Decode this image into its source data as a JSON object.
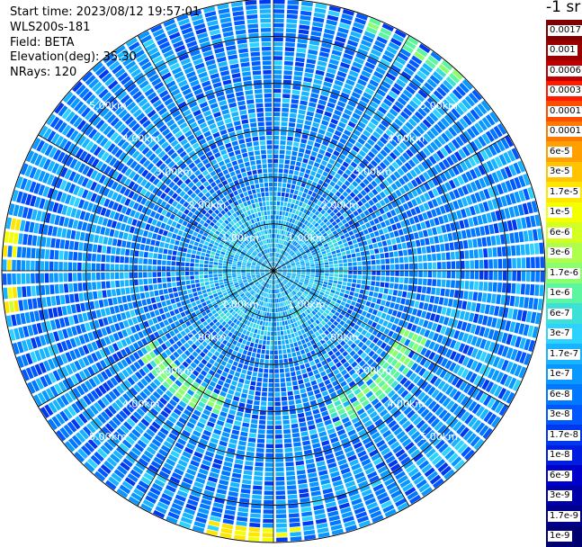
{
  "info": {
    "start_time": "Start time: 2023/08/12 19:57:01",
    "device": "WLS200s-181",
    "field": "Field: BETA",
    "elevation": "Elevation(deg): 35.30",
    "nrays": "NRays: 120"
  },
  "colorbar": {
    "title": "-1 sr",
    "labels": [
      "0.0017",
      "0.001",
      "0.0006",
      "0.0003",
      "0.00017",
      "0.0001",
      "6e-5",
      "3e-5",
      "1.7e-5",
      "1e-5",
      "6e-6",
      "3e-6",
      "1.7e-6",
      "1e-6",
      "6e-7",
      "3e-7",
      "1.7e-7",
      "1e-7",
      "6e-8",
      "3e-8",
      "1.7e-8",
      "1e-8",
      "6e-9",
      "3e-9",
      "1.7e-9",
      "1e-9"
    ],
    "colors": [
      "#7f0000",
      "#9a0000",
      "#c00000",
      "#ff1a00",
      "#ff4d00",
      "#ff7a00",
      "#ff9f00",
      "#ffc300",
      "#ffe600",
      "#f4ff00",
      "#d4ff22",
      "#adff4c",
      "#8bff6e",
      "#5cf5a0",
      "#3de0d6",
      "#2dd2ff",
      "#18b4ff",
      "#0898ff",
      "#0078ff",
      "#0058ff",
      "#0038f0",
      "#001ee0",
      "#0000cc",
      "#0000a8",
      "#00008c",
      "#000070"
    ]
  },
  "chart_data": {
    "type": "heatmap",
    "projection": "polar (PPI scan)",
    "rays": 120,
    "range_rings_km": [
      1,
      2,
      3,
      4,
      5
    ],
    "ring_labels": [
      "1.00km",
      "2.00km",
      "3.00km",
      "4.00km",
      "5.00km"
    ],
    "max_range_km": 5.8,
    "spokes_deg": [
      0,
      30,
      60,
      90,
      120,
      150,
      180,
      210,
      240,
      270,
      300,
      330
    ],
    "value_range": [
      1e-09,
      0.0017
    ],
    "typical_value": "6e-8 to 1.7e-7",
    "enhanced_regions": [
      {
        "azimuth_deg": [
          115,
          160
        ],
        "range_km": [
          3.0,
          3.6
        ],
        "value": "1e-6"
      },
      {
        "azimuth_deg": [
          200,
          240
        ],
        "range_km": [
          2.9,
          3.4
        ],
        "value": "1e-6"
      },
      {
        "azimuth_deg": [
          262,
          282
        ],
        "range_km": [
          5.5,
          5.8
        ],
        "value": "1e-5"
      },
      {
        "azimuth_deg": [
          175,
          195
        ],
        "range_km": [
          5.5,
          5.8
        ],
        "value": "1e-5"
      },
      {
        "azimuth_deg": [
          20,
          45
        ],
        "range_km": [
          5.5,
          5.8
        ],
        "value": "1e-6"
      }
    ]
  }
}
